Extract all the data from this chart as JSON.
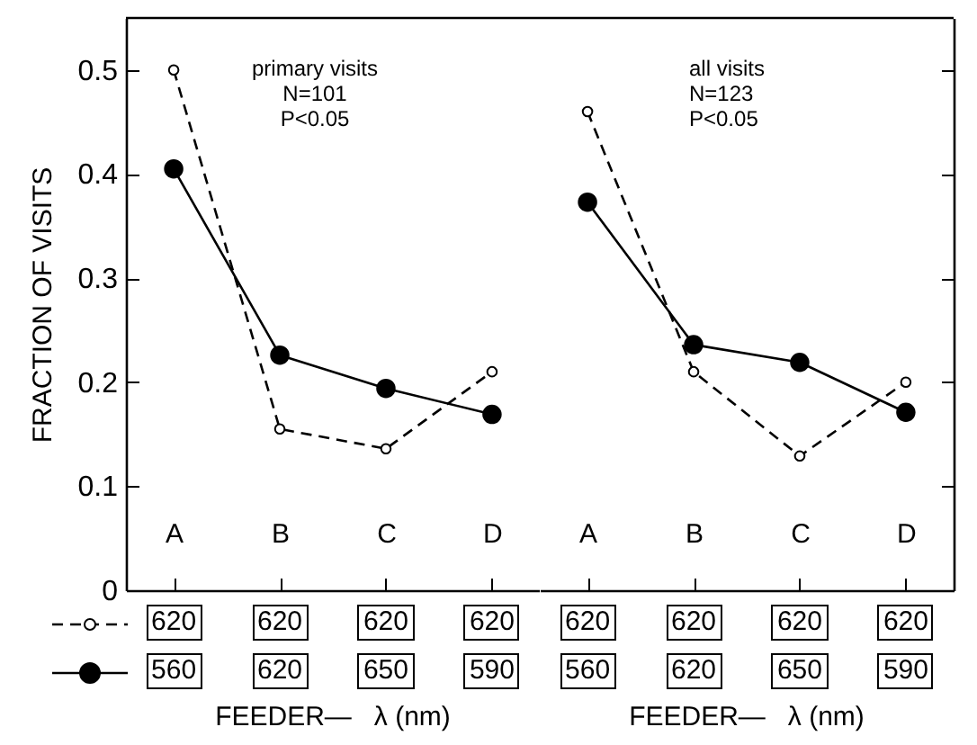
{
  "chart_data": [
    {
      "type": "line",
      "ylabel": "FRACTION OF VISITS",
      "categories": [
        "A",
        "B",
        "C",
        "D"
      ],
      "ylim": [
        0,
        0.55
      ],
      "yticks": [
        0,
        0.1,
        0.2,
        0.3,
        0.4,
        0.5
      ],
      "series": [
        {
          "color": "#000000",
          "line_style": "dashed",
          "marker": "circle",
          "values": [
            0.5,
            0.155,
            0.136,
            0.21
          ]
        },
        {
          "color": "#000000",
          "line_style": "solid",
          "marker": "circle",
          "values": [
            0.405,
            0.226,
            0.194,
            0.169
          ]
        }
      ],
      "annotations": [
        "primary visits",
        "N=101",
        "P<0.05",
        "620",
        "620",
        "620",
        "620",
        "560",
        "620",
        "650",
        "590",
        "FEEDER—   λ (nm)"
      ]
    },
    {
      "type": "line",
      "categories": [
        "A",
        "B",
        "C",
        "D"
      ],
      "ylim": [
        0,
        0.55
      ],
      "yticks": [
        0,
        0.1,
        0.2,
        0.3,
        0.4,
        0.5
      ],
      "tick_labels": "x",
      "series": [
        {
          "color": "#000000",
          "line_style": "dashed",
          "marker": "circle",
          "values": [
            0.46,
            0.21,
            0.129,
            0.2
          ]
        },
        {
          "color": "#000000",
          "line_style": "solid",
          "marker": "circle",
          "values": [
            0.373,
            0.236,
            0.219,
            0.171
          ]
        }
      ],
      "annotations": [
        "all visits",
        "N=123",
        "P<0.05",
        "620",
        "620",
        "620",
        "620",
        "560",
        "620",
        "650",
        "590",
        "FEEDER—   λ (nm)"
      ]
    }
  ]
}
